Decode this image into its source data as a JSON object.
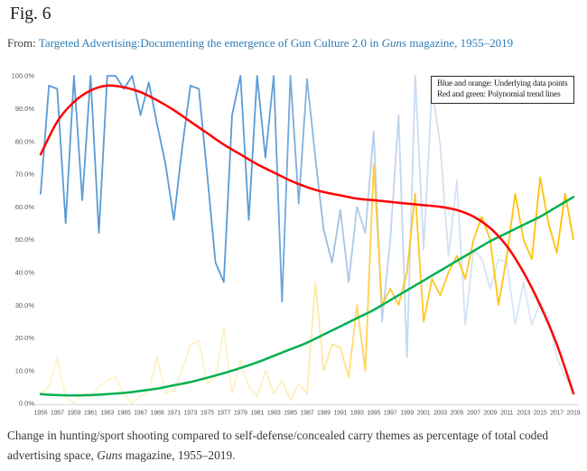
{
  "header": {
    "figure_label": "Fig. 6",
    "source_prefix": "From:",
    "source_link": {
      "text_before_italic": "Targeted Advertising:Documenting the emergence of Gun Culture 2.0 in ",
      "italic_text": "Guns",
      "text_after_italic": " magazine, 1955–2019"
    }
  },
  "caption": {
    "text_before_italic": "Change in hunting/sport shooting compared to self-defense/concealed carry themes as percentage of total coded advertising space, ",
    "italic_text": "Guns",
    "text_after_italic": " magazine, 1955–2019."
  },
  "chart_data": {
    "type": "line",
    "title": "",
    "xlabel": "",
    "ylabel": "",
    "grid": false,
    "legend_position": "top-right",
    "legend_lines": [
      "Blue and orange: Underlying data points",
      "Red and green: Polynomial trend lines"
    ],
    "x_range": [
      1955,
      2019
    ],
    "ylim": [
      0,
      100
    ],
    "x_ticks": [
      1955,
      1957,
      1959,
      1961,
      1963,
      1965,
      1967,
      1969,
      1971,
      1973,
      1975,
      1977,
      1979,
      1981,
      1983,
      1985,
      1987,
      1989,
      1991,
      1993,
      1995,
      1997,
      1999,
      2001,
      2003,
      2005,
      2007,
      2009,
      2011,
      2013,
      2015,
      2017,
      2019
    ],
    "y_ticks": [
      {
        "label": "100.0%",
        "value": 100
      },
      {
        "label": "90.0%",
        "value": 90
      },
      {
        "label": "80.0%",
        "value": 80
      },
      {
        "label": "70.0%",
        "value": 70
      },
      {
        "label": "60.0%",
        "value": 60
      },
      {
        "label": "50.0%",
        "value": 50
      },
      {
        "label": "40.0%",
        "value": 40
      },
      {
        "label": "30.0%",
        "value": 30
      },
      {
        "label": "20.0%",
        "value": 20
      },
      {
        "label": "10.0%",
        "value": 10
      },
      {
        "label": "0.0%",
        "value": 0
      }
    ],
    "axis_label_color": "#595959",
    "axis_line_color": "#d7d7d7",
    "series": [
      {
        "name": "blue-data-hunting-sport",
        "kind": "data",
        "x_start": 1955,
        "x_step": 1,
        "gradient": [
          [
            0,
            "#5B9BD5"
          ],
          [
            0.42,
            "#5B9BD5"
          ],
          [
            0.58,
            "#ACC9E8"
          ],
          [
            0.75,
            "#D3E1F2"
          ],
          [
            1,
            "#DDE8F6"
          ]
        ],
        "values": [
          64,
          97,
          96,
          55,
          100,
          62,
          100,
          52,
          100,
          100,
          96,
          100,
          88,
          98,
          85,
          73,
          56,
          78,
          97,
          96,
          70,
          43,
          37,
          88,
          100,
          56,
          100,
          75,
          100,
          31,
          100,
          61,
          99,
          75,
          53,
          43,
          59,
          37,
          60,
          52,
          83,
          25,
          50,
          88,
          14,
          100,
          47,
          96,
          79,
          45,
          68,
          24,
          47,
          44,
          35,
          44,
          43,
          24,
          37,
          24,
          31,
          26,
          14,
          8,
          5
        ]
      },
      {
        "name": "orange-data-self-defense",
        "kind": "data",
        "x_start": 1955,
        "x_step": 1,
        "gradient": [
          [
            0,
            "#FFF3CE"
          ],
          [
            0.48,
            "#FFEFC0"
          ],
          [
            0.57,
            "#FFE189"
          ],
          [
            0.64,
            "#FFC82B"
          ],
          [
            1,
            "#FFC000"
          ]
        ],
        "values": [
          3,
          5,
          14,
          2,
          0,
          3,
          2,
          5,
          7,
          8,
          3,
          0,
          2,
          4,
          14,
          3,
          4,
          10,
          18,
          19,
          6,
          8,
          23,
          3,
          13,
          5,
          2,
          10,
          3,
          7,
          1,
          6,
          3,
          37,
          10,
          18,
          17,
          8,
          30,
          10,
          73,
          30,
          35,
          30,
          40,
          64,
          25,
          38,
          33,
          40,
          45,
          38,
          50,
          57,
          50,
          30,
          45,
          64,
          50,
          44,
          69,
          55,
          46,
          64,
          50
        ]
      },
      {
        "name": "green-trend-self-defense",
        "kind": "trend",
        "color": "#00B050",
        "x_start": 1955,
        "x_step": 2,
        "values": [
          2.8,
          2.5,
          2.4,
          2.5,
          2.8,
          3.2,
          3.8,
          4.5,
          5.5,
          6.5,
          7.8,
          9.2,
          10.8,
          12.5,
          14.5,
          16.5,
          18.5,
          21,
          23.5,
          26,
          28.5,
          31.5,
          34.5,
          37.5,
          40.5,
          43.5,
          46.5,
          49.5,
          52,
          54.5,
          57,
          60,
          63
        ]
      },
      {
        "name": "red-trend-hunting-sport",
        "kind": "trend",
        "color": "#FF0000",
        "x_start": 1955,
        "x_step": 2,
        "values": [
          76,
          86,
          92,
          95.5,
          97,
          96.5,
          95,
          92.5,
          89.5,
          86,
          82.5,
          79,
          76,
          73,
          70.5,
          68,
          66,
          64.5,
          63.5,
          62.5,
          62,
          61.5,
          61,
          60.5,
          60,
          59,
          57,
          53.5,
          48,
          40,
          30,
          18,
          3
        ]
      }
    ]
  }
}
